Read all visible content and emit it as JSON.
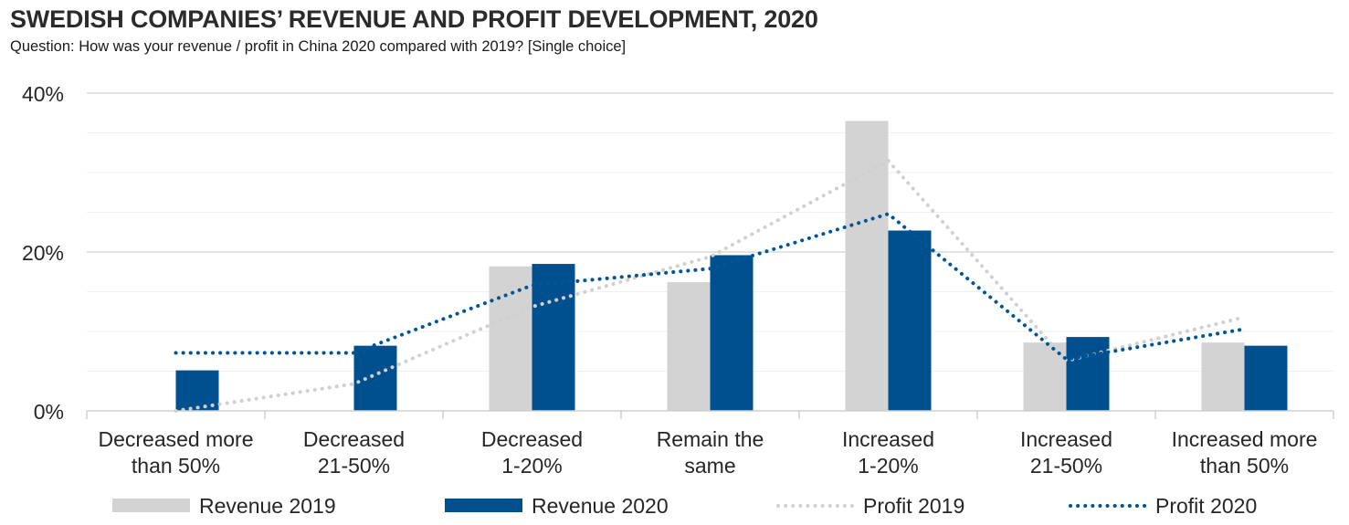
{
  "header": {
    "title": "SWEDISH COMPANIES’ REVENUE AND PROFIT DEVELOPMENT, 2020",
    "subtitle": "Question: How was your revenue / profit in China 2020 compared with 2019? [Single choice]"
  },
  "colors": {
    "revenue_2019": "#d3d3d3",
    "revenue_2020": "#00508f",
    "profit_2019": "#d0d0d0",
    "profit_2020": "#005596",
    "gridline": "#e6e6e6"
  },
  "chart_data": {
    "type": "bar",
    "title": "SWEDISH COMPANIES’ REVENUE AND PROFIT DEVELOPMENT, 2020",
    "categories": [
      [
        "Decreased more",
        "than 50%"
      ],
      [
        "Decreased",
        "21-50%"
      ],
      [
        "Decreased",
        "1-20%"
      ],
      [
        "Remain the",
        "same"
      ],
      [
        "Increased",
        "1-20%"
      ],
      [
        "Increased",
        "21-50%"
      ],
      [
        "Increased more",
        "than 50%"
      ]
    ],
    "ylim": [
      0,
      40
    ],
    "yticks": [
      0,
      20,
      40
    ],
    "ytick_labels": [
      "0%",
      "20%",
      "40%"
    ],
    "xlabel": "",
    "ylabel": "",
    "series": [
      {
        "name": "Revenue 2019",
        "kind": "bar",
        "values": [
          0,
          0,
          18.2,
          16.2,
          36.5,
          8.6,
          8.6
        ]
      },
      {
        "name": "Revenue 2020",
        "kind": "bar",
        "values": [
          5.1,
          8.2,
          18.5,
          19.6,
          22.7,
          9.3,
          8.2
        ]
      },
      {
        "name": "Profit 2019",
        "kind": "dotted-line",
        "values": [
          0,
          3.4,
          13.1,
          19.4,
          31.5,
          6.3,
          11.8
        ]
      },
      {
        "name": "Profit 2020",
        "kind": "dotted-line",
        "values": [
          7.3,
          7.3,
          15.8,
          17.9,
          24.8,
          6.5,
          10.3
        ]
      }
    ],
    "legend_position": "bottom"
  }
}
